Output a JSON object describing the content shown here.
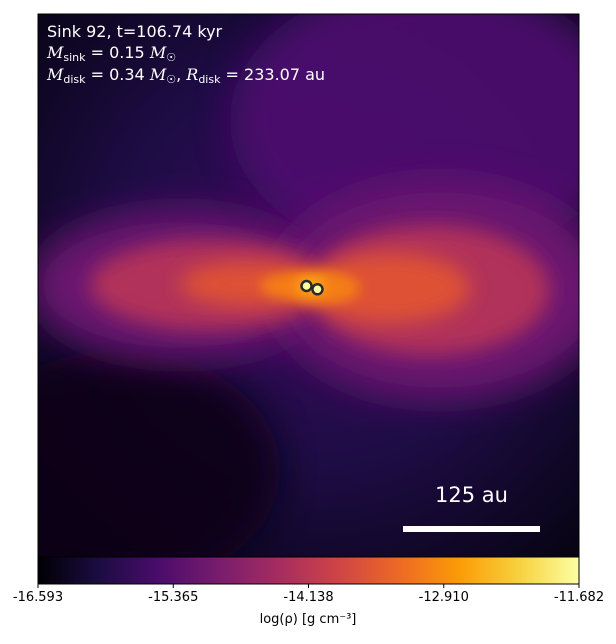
{
  "chart_data": {
    "type": "heatmap",
    "description_text": {
      "line1": "Sink 92, t=106.74 kyr",
      "line2_value": "0.15",
      "line3_mdisk_value": "0.34",
      "line3_rdisk_value": "233.07",
      "unit_au": "au"
    },
    "scale_bar_label": "125 au",
    "colorbar": {
      "colormap": "inferno",
      "min": -16.593,
      "max": -11.682,
      "ticks": [
        "-16.593",
        "-15.365",
        "-14.138",
        "-12.910",
        "-11.682"
      ],
      "label": "log(ρ) [g cm⁻³]"
    },
    "sinks": [
      {
        "x_au": -5,
        "y_au": 0
      },
      {
        "x_au": 5,
        "y_au": -3
      }
    ],
    "colors": {
      "inferno": [
        "#000004",
        "#1b0c41",
        "#4a0c6b",
        "#781c6d",
        "#a52c60",
        "#cf4446",
        "#ed6925",
        "#fb9b06",
        "#f7d13d",
        "#fcffa4"
      ]
    }
  }
}
